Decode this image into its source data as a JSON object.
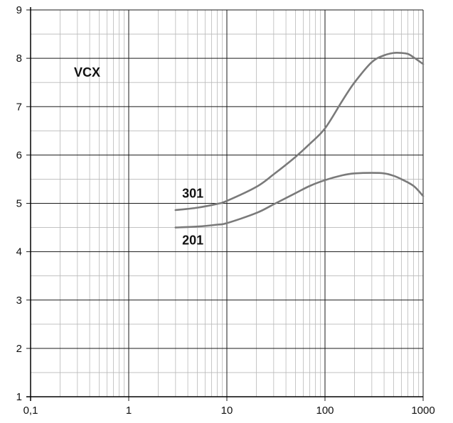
{
  "chart_data": {
    "type": "line",
    "x_scale": "log",
    "xlim": [
      0.1,
      1000
    ],
    "ylim": [
      1,
      9
    ],
    "x_ticks": [
      {
        "value": 0.1,
        "label": "0,1"
      },
      {
        "value": 1,
        "label": "1"
      },
      {
        "value": 10,
        "label": "10"
      },
      {
        "value": 100,
        "label": "100"
      },
      {
        "value": 1000,
        "label": "1000"
      }
    ],
    "y_ticks": [
      {
        "value": 1,
        "label": "1"
      },
      {
        "value": 2,
        "label": "2"
      },
      {
        "value": 3,
        "label": "3"
      },
      {
        "value": 4,
        "label": "4"
      },
      {
        "value": 5,
        "label": "5"
      },
      {
        "value": 6,
        "label": "6"
      },
      {
        "value": 7,
        "label": "7"
      },
      {
        "value": 8,
        "label": "8"
      },
      {
        "value": 9,
        "label": "9"
      }
    ],
    "grid": true,
    "annotation": "VCX",
    "line_color": "#7a7a7a",
    "series": [
      {
        "name": "301",
        "points": [
          [
            3,
            4.86
          ],
          [
            5,
            4.91
          ],
          [
            8,
            4.99
          ],
          [
            10,
            5.05
          ],
          [
            20,
            5.34
          ],
          [
            30,
            5.6
          ],
          [
            50,
            5.96
          ],
          [
            70,
            6.23
          ],
          [
            100,
            6.55
          ],
          [
            150,
            7.12
          ],
          [
            200,
            7.5
          ],
          [
            300,
            7.92
          ],
          [
            400,
            8.06
          ],
          [
            500,
            8.11
          ],
          [
            600,
            8.11
          ],
          [
            700,
            8.09
          ],
          [
            800,
            8.02
          ],
          [
            1000,
            7.88
          ]
        ]
      },
      {
        "name": "201",
        "points": [
          [
            3,
            4.5
          ],
          [
            5,
            4.52
          ],
          [
            8,
            4.56
          ],
          [
            10,
            4.59
          ],
          [
            20,
            4.8
          ],
          [
            30,
            4.98
          ],
          [
            50,
            5.21
          ],
          [
            70,
            5.36
          ],
          [
            100,
            5.48
          ],
          [
            150,
            5.58
          ],
          [
            200,
            5.62
          ],
          [
            300,
            5.63
          ],
          [
            400,
            5.62
          ],
          [
            500,
            5.57
          ],
          [
            600,
            5.5
          ],
          [
            800,
            5.36
          ],
          [
            1000,
            5.15
          ]
        ]
      }
    ]
  }
}
